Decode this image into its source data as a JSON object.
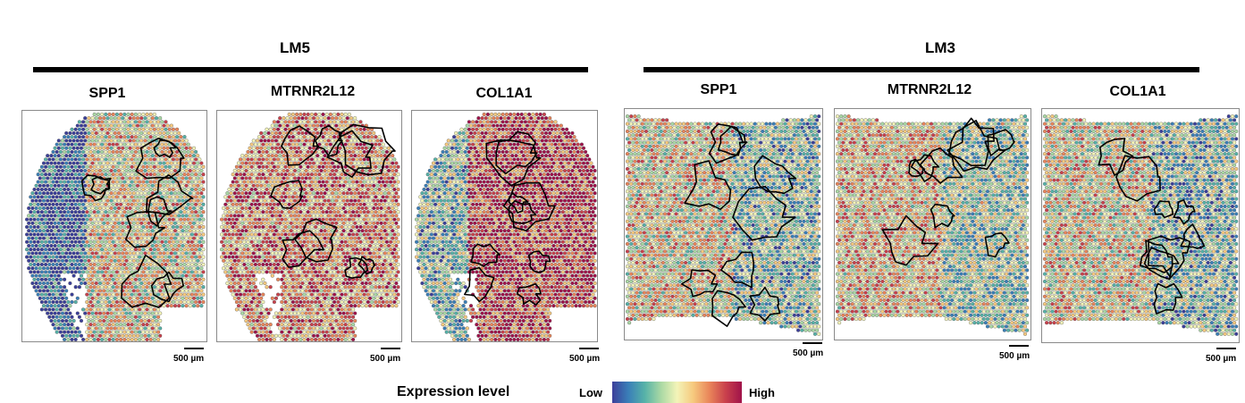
{
  "groups": [
    {
      "title": "LM5",
      "genes": [
        "SPP1",
        "MTRNR2L12",
        "COL1A1"
      ]
    },
    {
      "title": "LM3",
      "genes": [
        "SPP1",
        "MTRNR2L12",
        "COL1A1"
      ]
    }
  ],
  "scale_label": "500 µm",
  "legend": {
    "title": "Expression level",
    "low": "Low",
    "high": "High",
    "colors": [
      "#3b3f9a",
      "#3a7fb8",
      "#56b2a8",
      "#a9d8a4",
      "#f3f4b8",
      "#f6c97e",
      "#e9855a",
      "#c9414c",
      "#a0124a"
    ]
  }
}
